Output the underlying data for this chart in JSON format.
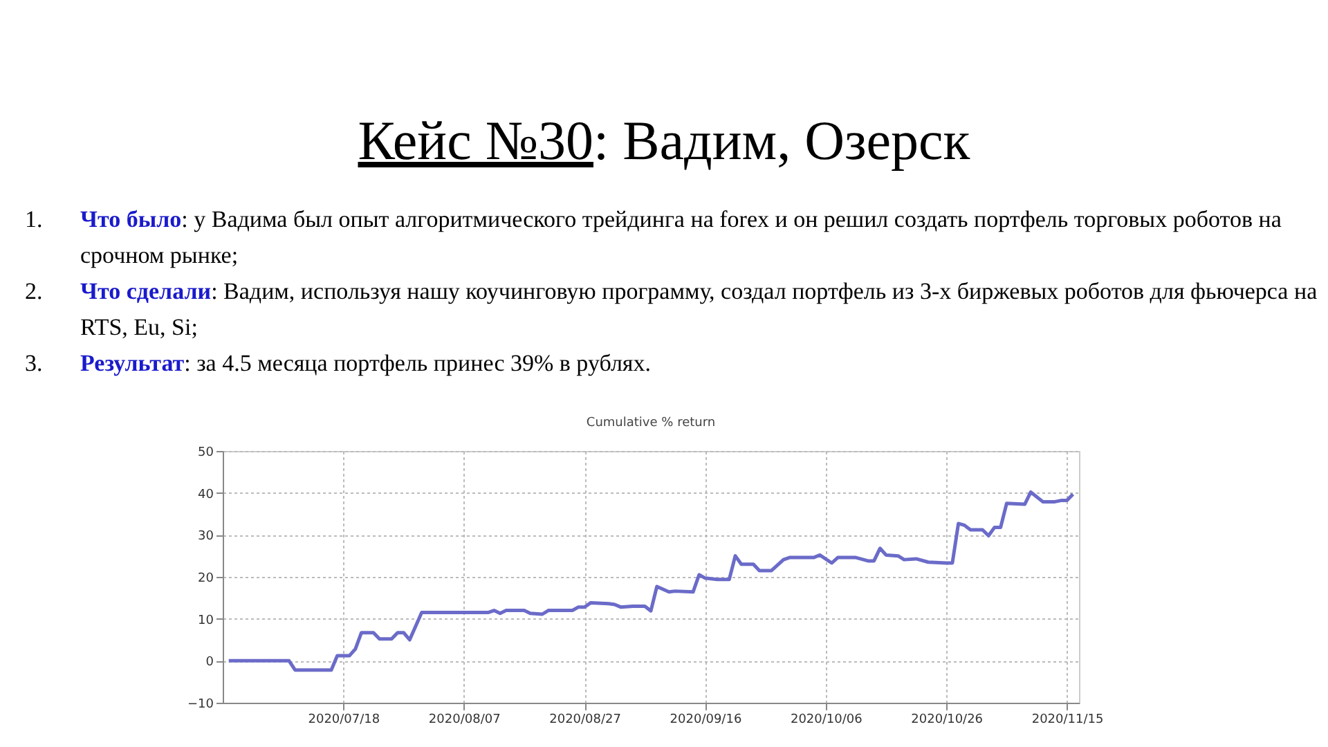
{
  "chart_data": {
    "type": "line",
    "title": "Кейс №30: Вадим, Озерск",
    "subtitle": "Cumulative % return",
    "annotations": [
      "1. Что было: у Вадима был опыт алгоритмического трейдинга на forex и он решил создать портфель торговых роботов на срочном рынке;",
      "2. Что сделали: Вадим, используя нашу коучинговую программу, создал портфель из 3-х биржевых роботов для фьючерса на RTS, Eu, Si;",
      "3. Результат: за 4.5 месяца портфель принес 39% в рублях."
    ],
    "x": [
      "2020-06-29",
      "2020-07-09",
      "2020-07-10",
      "2020-07-16",
      "2020-07-17",
      "2020-07-19",
      "2020-07-20",
      "2020-07-21",
      "2020-07-23",
      "2020-07-24",
      "2020-07-26",
      "2020-07-27",
      "2020-07-28",
      "2020-07-29",
      "2020-07-31",
      "2020-08-11",
      "2020-08-12",
      "2020-08-13",
      "2020-08-14",
      "2020-08-17",
      "2020-08-18",
      "2020-08-20",
      "2020-08-21",
      "2020-08-25",
      "2020-08-26",
      "2020-08-27",
      "2020-08-28",
      "2020-08-31",
      "2020-09-01",
      "2020-09-02",
      "2020-09-04",
      "2020-09-06",
      "2020-09-07",
      "2020-09-08",
      "2020-09-10",
      "2020-09-11",
      "2020-09-14",
      "2020-09-15",
      "2020-09-16",
      "2020-09-18",
      "2020-09-20",
      "2020-09-21",
      "2020-09-22",
      "2020-09-24",
      "2020-09-25",
      "2020-09-27",
      "2020-09-29",
      "2020-09-30",
      "2020-10-04",
      "2020-10-05",
      "2020-10-07",
      "2020-10-08",
      "2020-10-11",
      "2020-10-13",
      "2020-10-14",
      "2020-10-15",
      "2020-10-16",
      "2020-10-18",
      "2020-10-19",
      "2020-10-21",
      "2020-10-23",
      "2020-10-26",
      "2020-10-27",
      "2020-10-28",
      "2020-10-29",
      "2020-10-30",
      "2020-11-01",
      "2020-11-02",
      "2020-11-03",
      "2020-11-04",
      "2020-11-05",
      "2020-11-08",
      "2020-11-09",
      "2020-11-11",
      "2020-11-13",
      "2020-11-14",
      "2020-11-15",
      "2020-11-16"
    ],
    "series": [
      {
        "color": "#6b6bc9",
        "values": [
          0,
          0,
          -2.2,
          -2.2,
          1.2,
          1.2,
          2.8,
          6.7,
          6.7,
          5.2,
          5.2,
          6.7,
          6.7,
          5,
          11.5,
          11.5,
          12,
          11.3,
          12,
          12,
          11.3,
          11.1,
          12,
          12,
          12.8,
          12.8,
          13.8,
          13.6,
          13.4,
          12.8,
          13,
          13,
          11.9,
          17.7,
          16.4,
          16.6,
          16.4,
          20.5,
          19.7,
          19.4,
          19.4,
          25,
          23,
          23,
          21.5,
          21.5,
          24.1,
          24.6,
          24.6,
          25.2,
          23.3,
          24.6,
          24.6,
          23.8,
          23.8,
          26.8,
          25.2,
          25,
          24.1,
          24.3,
          23.5,
          23.3,
          23.3,
          32.7,
          32.3,
          31.2,
          31.2,
          29.8,
          31.8,
          31.8,
          37.5,
          37.3,
          40.2,
          37.9,
          37.9,
          38.2,
          38.2,
          39.7
        ]
      }
    ],
    "xlim": [
      "2020-06-28",
      "2020-11-17"
    ],
    "xticks": [
      {
        "value": "2020-07-18",
        "label": "2020/07/18"
      },
      {
        "value": "2020-08-07",
        "label": "2020/08/07"
      },
      {
        "value": "2020-08-27",
        "label": "2020/08/27"
      },
      {
        "value": "2020-09-16",
        "label": "2020/09/16"
      },
      {
        "value": "2020-10-06",
        "label": "2020/10/06"
      },
      {
        "value": "2020-10-26",
        "label": "2020/10/26"
      },
      {
        "value": "2020-11-15",
        "label": "2020/11/15"
      }
    ],
    "ylim": [
      -10,
      50
    ],
    "yticks": [
      -10,
      0,
      10,
      20,
      30,
      40,
      50
    ],
    "grid": true,
    "legend": false
  }
}
